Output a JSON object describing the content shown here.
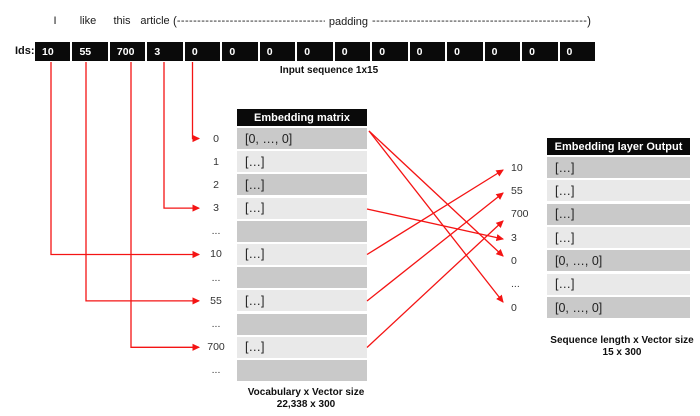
{
  "palette": {
    "arrow_red": "#f41414",
    "row_dark": "#c9c9c9",
    "row_light": "#e9e9e9",
    "header_bg": "#0a0a0a",
    "header_fg": "#ffffff"
  },
  "sentence": {
    "words": [
      "I",
      "like",
      "this",
      "article"
    ],
    "open_paren": "(",
    "dashes_left": "------------------------------------------------------------",
    "padding_label": "padding",
    "dashes_right": "--------------------------------------------------------------------------------",
    "close_paren": ")"
  },
  "ids_row": {
    "label": "Ids:",
    "values": [
      "10",
      "55",
      "700",
      "3",
      "0",
      "0",
      "0",
      "0",
      "0",
      "0",
      "0",
      "0",
      "0",
      "0",
      "0"
    ],
    "caption": "Input sequence 1x15"
  },
  "embedding_matrix": {
    "title": "Embedding matrix",
    "rows": [
      {
        "label": "0",
        "value": "[0, …, 0]"
      },
      {
        "label": "1",
        "value": "[…]"
      },
      {
        "label": "2",
        "value": "[…]"
      },
      {
        "label": "3",
        "value": "[…]"
      },
      {
        "label": "...",
        "value": ""
      },
      {
        "label": "10",
        "value": "[…]"
      },
      {
        "label": "...",
        "value": ""
      },
      {
        "label": "55",
        "value": "[…]"
      },
      {
        "label": "...",
        "value": ""
      },
      {
        "label": "700",
        "value": "[…]"
      },
      {
        "label": "...",
        "value": ""
      }
    ],
    "caption_line1": "Vocabulary x Vector size",
    "caption_line2": "22,338 x 300"
  },
  "output_table": {
    "title": "Embedding layer Output",
    "rows": [
      {
        "label": "10",
        "value": "[…]"
      },
      {
        "label": "55",
        "value": "[…]"
      },
      {
        "label": "700",
        "value": "[…]"
      },
      {
        "label": "3",
        "value": "[…]"
      },
      {
        "label": "0",
        "value": "[0, …, 0]"
      },
      {
        "label": "...",
        "value": "[…]"
      },
      {
        "label": "0",
        "value": "[0, …, 0]"
      }
    ],
    "caption_line1": "Sequence length x Vector size",
    "caption_line2": "15 x 300"
  },
  "mappings": {
    "input_ids_to_matrix_rows": [
      [
        "10",
        "10"
      ],
      [
        "55",
        "55"
      ],
      [
        "700",
        "700"
      ],
      [
        "3",
        "3"
      ],
      [
        "0",
        "0"
      ]
    ],
    "matrix_rows_to_output_positions": [
      [
        "0",
        "0"
      ],
      [
        "0",
        "0"
      ],
      [
        "3",
        "3"
      ],
      [
        "10",
        "10"
      ],
      [
        "55",
        "55"
      ],
      [
        "700",
        "700"
      ]
    ]
  }
}
